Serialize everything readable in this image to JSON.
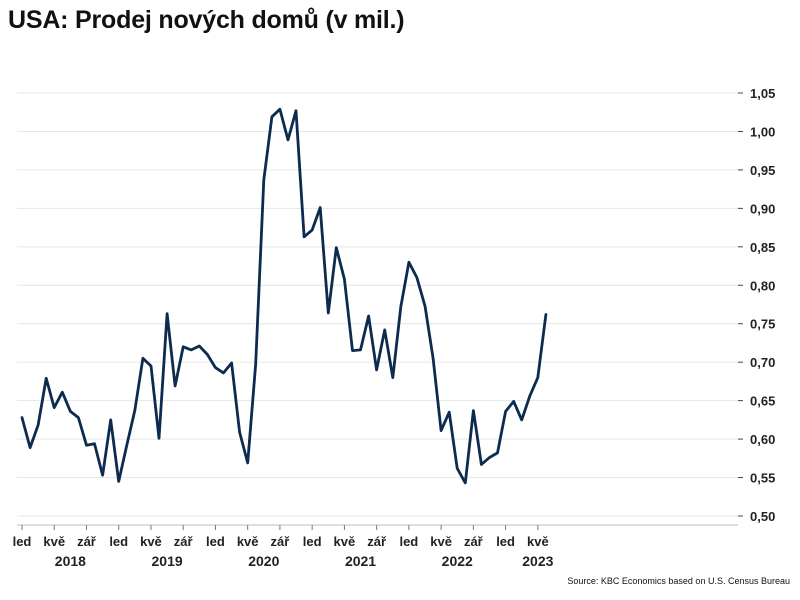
{
  "chart_data": {
    "type": "line",
    "title": "USA: Prodej nových domů (v mil.)",
    "source": "Source: KBC Economics based on U.S. Census Bureau",
    "ylim": [
      0.5,
      1.05
    ],
    "yticks": [
      "0,50",
      "0,55",
      "0,60",
      "0,65",
      "0,70",
      "0,75",
      "0,80",
      "0,85",
      "0,90",
      "0,95",
      "1,00",
      "1,05"
    ],
    "y_axis_position": "right",
    "grid": "horizontal",
    "month_ticks": [
      {
        "month": 0,
        "label": "led"
      },
      {
        "month": 4,
        "label": "kvě"
      },
      {
        "month": 8,
        "label": "zář"
      },
      {
        "month": 12,
        "label": "led"
      },
      {
        "month": 16,
        "label": "kvě"
      },
      {
        "month": 20,
        "label": "zář"
      },
      {
        "month": 24,
        "label": "led"
      },
      {
        "month": 28,
        "label": "kvě"
      },
      {
        "month": 32,
        "label": "zář"
      },
      {
        "month": 36,
        "label": "led"
      },
      {
        "month": 40,
        "label": "kvě"
      },
      {
        "month": 44,
        "label": "zář"
      },
      {
        "month": 48,
        "label": "led"
      },
      {
        "month": 52,
        "label": "kvě"
      },
      {
        "month": 56,
        "label": "zář"
      },
      {
        "month": 60,
        "label": "led"
      },
      {
        "month": 64,
        "label": "kvě"
      }
    ],
    "years": [
      {
        "month": 6,
        "label": "2018"
      },
      {
        "month": 18,
        "label": "2019"
      },
      {
        "month": 30,
        "label": "2020"
      },
      {
        "month": 42,
        "label": "2021"
      },
      {
        "month": 54,
        "label": "2022"
      },
      {
        "month": 64,
        "label": "2023"
      }
    ],
    "line_color": "#0c2b4f",
    "series": [
      {
        "values": [
          0.628,
          0.589,
          0.618,
          0.679,
          0.641,
          0.661,
          0.636,
          0.628,
          0.592,
          0.594,
          0.553,
          0.625,
          0.545,
          0.592,
          0.637,
          0.705,
          0.695,
          0.601,
          0.763,
          0.669,
          0.72,
          0.716,
          0.721,
          0.71,
          0.693,
          0.686,
          0.699,
          0.609,
          0.569,
          0.698,
          0.937,
          1.019,
          1.029,
          0.989,
          1.027,
          0.863,
          0.872,
          0.901,
          0.764,
          0.849,
          0.808,
          0.715,
          0.716,
          0.76,
          0.69,
          0.742,
          0.68,
          0.772,
          0.83,
          0.81,
          0.773,
          0.705,
          0.611,
          0.635,
          0.562,
          0.543,
          0.637,
          0.567,
          0.576,
          0.582,
          0.636,
          0.649,
          0.625,
          0.656,
          0.68,
          0.762
        ]
      }
    ]
  }
}
